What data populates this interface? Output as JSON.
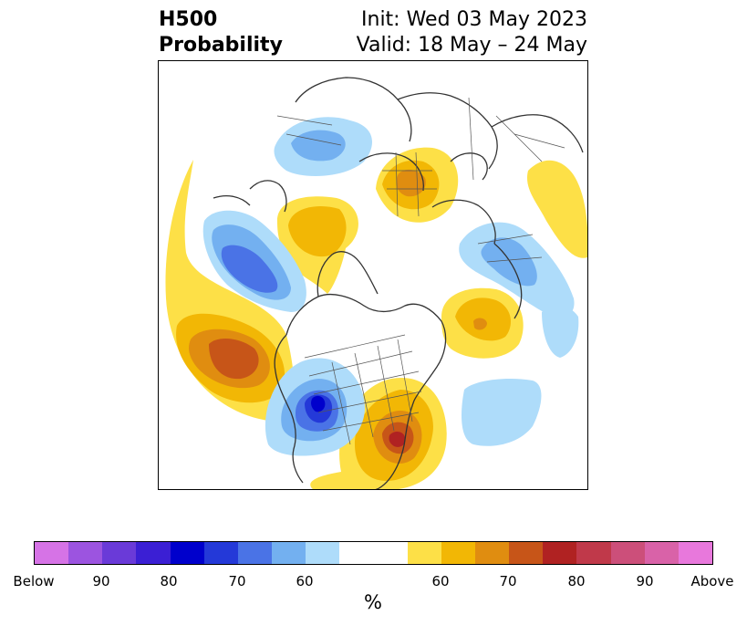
{
  "title": {
    "left_line1": "H500",
    "left_line2": "Probability",
    "right_line1": "Init: Wed 03 May 2023",
    "right_line2": "Valid: 18 May – 24 May"
  },
  "map": {
    "projection": "north-polar-stereographic",
    "anomaly_regions": [
      {
        "area": "Northeast Pacific",
        "category": "Above",
        "peak_percent": 75
      },
      {
        "area": "Western North America",
        "category": "Below",
        "peak_percent": 80
      },
      {
        "area": "Eastern United States",
        "category": "Above",
        "peak_percent": 80
      },
      {
        "area": "Gulf of Alaska / Bering",
        "category": "Below",
        "peak_percent": 70
      },
      {
        "area": "Eastern Siberia",
        "category": "Above",
        "peak_percent": 65
      },
      {
        "area": "Arctic / Scandinavia",
        "category": "Above",
        "peak_percent": 65
      },
      {
        "area": "North Atlantic / Greenland",
        "category": "Above",
        "peak_percent": 70
      },
      {
        "area": "Northern Europe / Russia",
        "category": "Below",
        "peak_percent": 65
      },
      {
        "area": "Central Atlantic",
        "category": "Below",
        "peak_percent": 60
      },
      {
        "area": "Siberia / Kamchatka",
        "category": "Below",
        "peak_percent": 60
      },
      {
        "area": "Central Asia edge",
        "category": "Above",
        "peak_percent": 60
      }
    ]
  },
  "colorbar": {
    "unit": "%",
    "colors": [
      "#d673e6",
      "#9c54e0",
      "#6a3ad8",
      "#3b1fd4",
      "#0000cc",
      "#2439d8",
      "#4a73e6",
      "#73b0f0",
      "#aedcfa",
      "#ffffff",
      "#fde047",
      "#f2b705",
      "#e08d10",
      "#c75518",
      "#b02222",
      "#c0394a",
      "#cc4f7a",
      "#d962a8",
      "#e878dc"
    ],
    "tick_labels": [
      "Below",
      "90",
      "80",
      "70",
      "60",
      "60",
      "70",
      "80",
      "90",
      "Above"
    ]
  }
}
